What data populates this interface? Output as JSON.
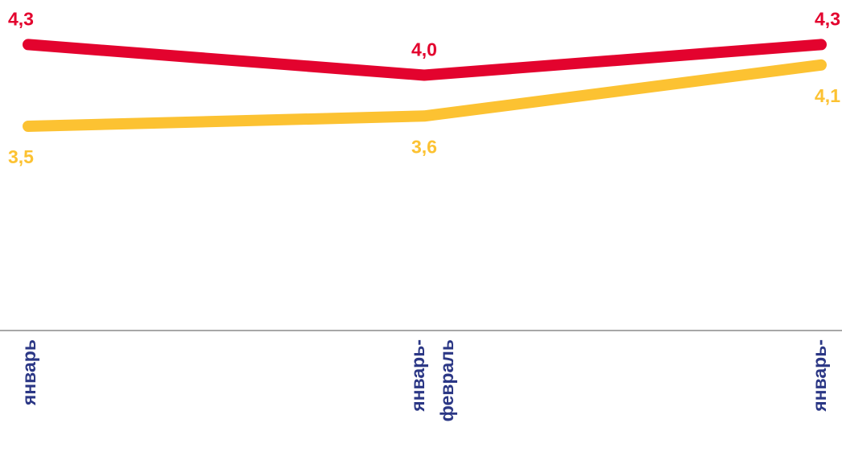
{
  "chart_data": {
    "type": "line",
    "categories": [
      "январь",
      "январь-февраль",
      "январь-март"
    ],
    "series": [
      {
        "color": "#e3032e",
        "values": [
          4.3,
          4.0,
          4.3
        ],
        "value_labels": [
          "4,3",
          "4,0",
          "4,3"
        ]
      },
      {
        "color": "#fcc232",
        "values": [
          3.5,
          3.6,
          4.1
        ],
        "value_labels": [
          "3,5",
          "3,6",
          "4,1"
        ]
      }
    ],
    "ylim": [
      1.5,
      4.5
    ],
    "grid": false
  }
}
